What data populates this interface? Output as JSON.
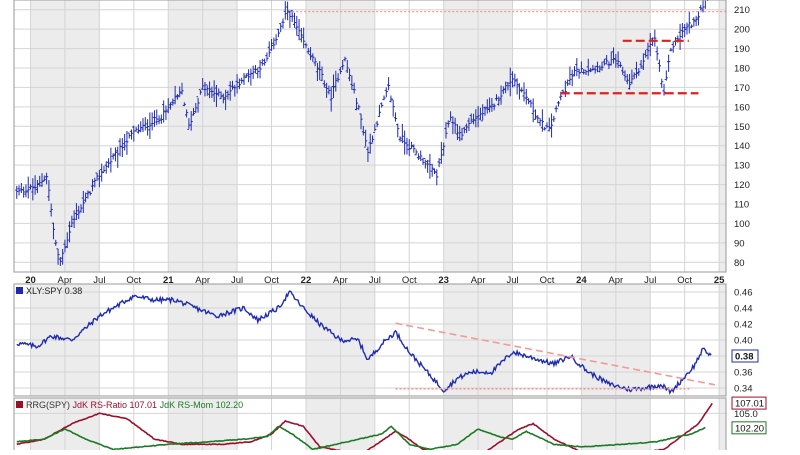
{
  "chart_data": [
    {
      "type": "ohlc",
      "panel": "price",
      "ylim": [
        75,
        215
      ],
      "y_ticks": [
        80,
        90,
        100,
        110,
        120,
        130,
        140,
        150,
        160,
        170,
        180,
        190,
        200,
        210
      ],
      "x_range": [
        2019.88,
        2025.05
      ],
      "x_ticks": [
        {
          "label": "20",
          "x": 2020.0,
          "bold": true
        },
        {
          "label": "Apr",
          "x": 2020.25
        },
        {
          "label": "Jul",
          "x": 2020.5
        },
        {
          "label": "Oct",
          "x": 2020.75
        },
        {
          "label": "21",
          "x": 2021.0,
          "bold": true
        },
        {
          "label": "Apr",
          "x": 2021.25
        },
        {
          "label": "Jul",
          "x": 2021.5
        },
        {
          "label": "Oct",
          "x": 2021.75
        },
        {
          "label": "22",
          "x": 2022.0,
          "bold": true
        },
        {
          "label": "Apr",
          "x": 2022.25
        },
        {
          "label": "Jul",
          "x": 2022.5
        },
        {
          "label": "Oct",
          "x": 2022.75
        },
        {
          "label": "23",
          "x": 2023.0,
          "bold": true
        },
        {
          "label": "Apr",
          "x": 2023.25
        },
        {
          "label": "Jul",
          "x": 2023.5
        },
        {
          "label": "Oct",
          "x": 2023.75
        },
        {
          "label": "24",
          "x": 2024.0,
          "bold": true
        },
        {
          "label": "Apr",
          "x": 2024.25
        },
        {
          "label": "Jul",
          "x": 2024.5
        },
        {
          "label": "Oct",
          "x": 2024.75
        },
        {
          "label": "25",
          "x": 2025.0,
          "bold": true
        }
      ],
      "anchors": [
        [
          2019.9,
          116
        ],
        [
          2020.05,
          119
        ],
        [
          2020.12,
          125
        ],
        [
          2020.17,
          95
        ],
        [
          2020.21,
          79
        ],
        [
          2020.3,
          100
        ],
        [
          2020.5,
          125
        ],
        [
          2020.75,
          147
        ],
        [
          2020.95,
          155
        ],
        [
          2021.1,
          168
        ],
        [
          2021.15,
          150
        ],
        [
          2021.25,
          170
        ],
        [
          2021.4,
          165
        ],
        [
          2021.55,
          175
        ],
        [
          2021.7,
          182
        ],
        [
          2021.83,
          203
        ],
        [
          2021.87,
          210
        ],
        [
          2021.97,
          195
        ],
        [
          2022.1,
          178
        ],
        [
          2022.18,
          165
        ],
        [
          2022.28,
          185
        ],
        [
          2022.38,
          160
        ],
        [
          2022.45,
          137
        ],
        [
          2022.55,
          160
        ],
        [
          2022.6,
          170
        ],
        [
          2022.68,
          145
        ],
        [
          2022.82,
          135
        ],
        [
          2022.95,
          125
        ],
        [
          2023.05,
          155
        ],
        [
          2023.12,
          145
        ],
        [
          2023.2,
          153
        ],
        [
          2023.35,
          160
        ],
        [
          2023.5,
          175
        ],
        [
          2023.6,
          165
        ],
        [
          2023.7,
          152
        ],
        [
          2023.77,
          148
        ],
        [
          2023.85,
          165
        ],
        [
          2023.95,
          178
        ],
        [
          2024.1,
          180
        ],
        [
          2024.25,
          184
        ],
        [
          2024.35,
          172
        ],
        [
          2024.45,
          183
        ],
        [
          2024.53,
          196
        ],
        [
          2024.6,
          166
        ],
        [
          2024.65,
          190
        ],
        [
          2024.75,
          200
        ],
        [
          2024.85,
          206
        ],
        [
          2024.92,
          220
        ]
      ],
      "annotations": [
        {
          "kind": "dotted",
          "color": "#f29a9a",
          "x1": 2021.9,
          "y1": 209,
          "x2": 2025.05,
          "y2": 209
        },
        {
          "kind": "dashed",
          "color": "#e0201e",
          "x1": 2023.85,
          "y1": 167,
          "x2": 2024.85,
          "y2": 167
        },
        {
          "kind": "dashed",
          "color": "#e0201e",
          "x1": 2024.3,
          "y1": 194,
          "x2": 2024.78,
          "y2": 194
        }
      ]
    },
    {
      "type": "line",
      "panel": "ratio",
      "series": [
        {
          "name": "XLY:SPY",
          "color": "#1e2bb0"
        }
      ],
      "legend_label": "XLY:SPY 0.38",
      "last_value": "0.38",
      "ylim": [
        0.33,
        0.47
      ],
      "y_ticks": [
        "0.46",
        "0.44",
        "0.42",
        "0.40",
        "0.38",
        "0.36",
        "0.34"
      ],
      "anchors": [
        [
          2019.9,
          0.396
        ],
        [
          2020.05,
          0.392
        ],
        [
          2020.15,
          0.405
        ],
        [
          2020.3,
          0.4
        ],
        [
          2020.5,
          0.43
        ],
        [
          2020.75,
          0.455
        ],
        [
          2020.9,
          0.45
        ],
        [
          2021.05,
          0.45
        ],
        [
          2021.2,
          0.44
        ],
        [
          2021.35,
          0.43
        ],
        [
          2021.55,
          0.44
        ],
        [
          2021.65,
          0.425
        ],
        [
          2021.8,
          0.44
        ],
        [
          2021.88,
          0.46
        ],
        [
          2021.98,
          0.44
        ],
        [
          2022.1,
          0.42
        ],
        [
          2022.25,
          0.4
        ],
        [
          2022.38,
          0.4
        ],
        [
          2022.45,
          0.375
        ],
        [
          2022.55,
          0.395
        ],
        [
          2022.65,
          0.41
        ],
        [
          2022.75,
          0.385
        ],
        [
          2022.88,
          0.36
        ],
        [
          2023.0,
          0.337
        ],
        [
          2023.1,
          0.352
        ],
        [
          2023.2,
          0.36
        ],
        [
          2023.35,
          0.36
        ],
        [
          2023.5,
          0.385
        ],
        [
          2023.6,
          0.38
        ],
        [
          2023.7,
          0.375
        ],
        [
          2023.8,
          0.37
        ],
        [
          2023.92,
          0.38
        ],
        [
          2024.05,
          0.36
        ],
        [
          2024.2,
          0.345
        ],
        [
          2024.35,
          0.338
        ],
        [
          2024.45,
          0.34
        ],
        [
          2024.58,
          0.344
        ],
        [
          2024.65,
          0.335
        ],
        [
          2024.73,
          0.35
        ],
        [
          2024.82,
          0.368
        ],
        [
          2024.88,
          0.388
        ],
        [
          2024.95,
          0.38
        ]
      ],
      "annotations": [
        {
          "kind": "dashed",
          "color": "#f29a9a",
          "x1": 2022.65,
          "y1": 0.421,
          "x2": 2024.97,
          "y2": 0.344
        },
        {
          "kind": "dotted",
          "color": "#f29a9a",
          "x1": 2022.65,
          "y1": 0.339,
          "x2": 2024.8,
          "y2": 0.339
        }
      ]
    },
    {
      "type": "line",
      "panel": "rrg",
      "legend_parts": [
        {
          "text": "RRG(SPY) ",
          "color": "#333333"
        },
        {
          "text": "JdK RS-Ratio 107.01",
          "color": "#9b0f2a"
        },
        {
          "text": " ",
          "color": "#333333"
        },
        {
          "text": "JdK RS-Mom 102.20",
          "color": "#1a7a24"
        }
      ],
      "ylim": [
        97.5,
        108.0
      ],
      "y_ticks": [
        "105.0"
      ],
      "value_tags": [
        {
          "label": "107.01",
          "value": 107.01,
          "color": "#9b0f2a"
        },
        {
          "label": "102.20",
          "value": 102.2,
          "color": "#1a7a24"
        }
      ],
      "series": [
        {
          "name": "JdK RS-Ratio",
          "color": "#9b0f2a",
          "anchors": [
            [
              2019.9,
              99.0
            ],
            [
              2020.1,
              100.0
            ],
            [
              2020.3,
              103.0
            ],
            [
              2020.5,
              105.0
            ],
            [
              2020.7,
              104.0
            ],
            [
              2020.9,
              100.0
            ],
            [
              2021.1,
              99.0
            ],
            [
              2021.4,
              99.0
            ],
            [
              2021.6,
              99.5
            ],
            [
              2021.75,
              101.0
            ],
            [
              2021.85,
              103.5
            ],
            [
              2021.98,
              102.5
            ],
            [
              2022.1,
              98.5
            ],
            [
              2022.4,
              97.0
            ],
            [
              2022.65,
              101.5
            ],
            [
              2022.72,
              100.5
            ],
            [
              2022.85,
              98.0
            ],
            [
              2023.0,
              97.0
            ],
            [
              2023.3,
              97.5
            ],
            [
              2023.55,
              102.0
            ],
            [
              2023.65,
              103.0
            ],
            [
              2023.8,
              100.0
            ],
            [
              2024.0,
              97.5
            ],
            [
              2024.3,
              97.0
            ],
            [
              2024.6,
              98.0
            ],
            [
              2024.75,
              101.0
            ],
            [
              2024.85,
              103.0
            ],
            [
              2024.95,
              107.0
            ]
          ]
        },
        {
          "name": "JdK RS-Mom",
          "color": "#1a7a24",
          "anchors": [
            [
              2019.9,
              99.5
            ],
            [
              2020.1,
              100.0
            ],
            [
              2020.25,
              102.0
            ],
            [
              2020.4,
              100.0
            ],
            [
              2020.6,
              98.0
            ],
            [
              2020.8,
              98.5
            ],
            [
              2021.0,
              99.0
            ],
            [
              2021.3,
              99.5
            ],
            [
              2021.55,
              100.0
            ],
            [
              2021.72,
              100.5
            ],
            [
              2021.8,
              102.5
            ],
            [
              2021.9,
              101.0
            ],
            [
              2022.05,
              98.0
            ],
            [
              2022.3,
              99.5
            ],
            [
              2022.55,
              101.0
            ],
            [
              2022.62,
              102.5
            ],
            [
              2022.75,
              99.0
            ],
            [
              2022.9,
              98.0
            ],
            [
              2023.1,
              99.0
            ],
            [
              2023.25,
              102.0
            ],
            [
              2023.4,
              100.5
            ],
            [
              2023.5,
              100.0
            ],
            [
              2023.6,
              101.5
            ],
            [
              2023.8,
              99.0
            ],
            [
              2024.0,
              98.5
            ],
            [
              2024.3,
              99.0
            ],
            [
              2024.55,
              99.5
            ],
            [
              2024.7,
              100.5
            ],
            [
              2024.8,
              101.0
            ],
            [
              2024.9,
              102.2
            ]
          ]
        }
      ]
    }
  ]
}
